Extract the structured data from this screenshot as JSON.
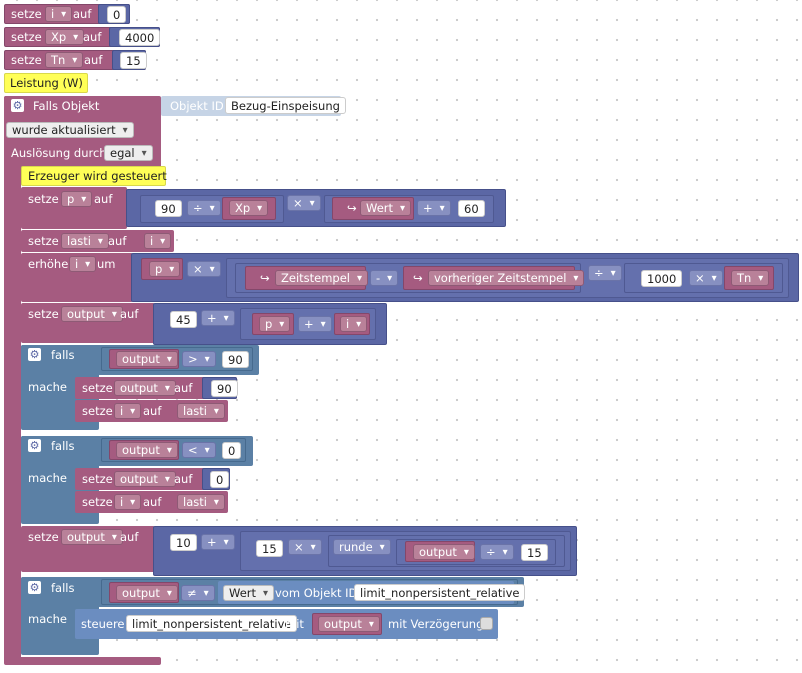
{
  "vars": {
    "i": "i",
    "xp": "Xp",
    "tn": "Tn",
    "p": "p",
    "lasti": "lasti",
    "output": "output"
  },
  "words": {
    "setze": "setze",
    "auf": "auf",
    "um": "um",
    "erhoehe": "erhöhe",
    "falls": "falls",
    "mache": "mache",
    "steuere": "steuere",
    "mit": "mit",
    "vom_objekt_id": "vom Objekt ID",
    "mit_verzoegerung": "mit Verzögerung"
  },
  "nums": {
    "n0": "0",
    "n4000": "4000",
    "n15": "15",
    "n90": "90",
    "n60": "60",
    "n1000": "1000",
    "n45": "45",
    "n10": "10"
  },
  "ops": {
    "div": "÷",
    "mul": "×",
    "plus": "+",
    "minus": "-",
    "gt": ">",
    "lt": "<",
    "neq": "≠"
  },
  "comments": {
    "leistung": "Leistung (W)",
    "erzeuger": "Erzeuger wird gesteuert"
  },
  "trigger": {
    "title": "Falls Objekt",
    "objekt_id_label": "Objekt ID",
    "objekt_id": "Bezug-Einspeisung",
    "mode": "wurde aktualisiert",
    "ausloesung": "Auslösung durch",
    "ausloesung_value": "egal"
  },
  "fields": {
    "wert": "Wert",
    "zeitstempel": "Zeitstempel",
    "vorheriger": "vorheriger Zeitstempel",
    "runde": "runde",
    "limit": "limit_nonpersistent_relative"
  },
  "icons": {
    "gear": "gear-icon",
    "arrow": "return-arrow-icon"
  },
  "colors": {
    "variables": "#a55b80",
    "math": "#5b67a5",
    "logic": "#5b80a5",
    "comment": "#ffff57",
    "iobroker": "#c6d4e6"
  }
}
